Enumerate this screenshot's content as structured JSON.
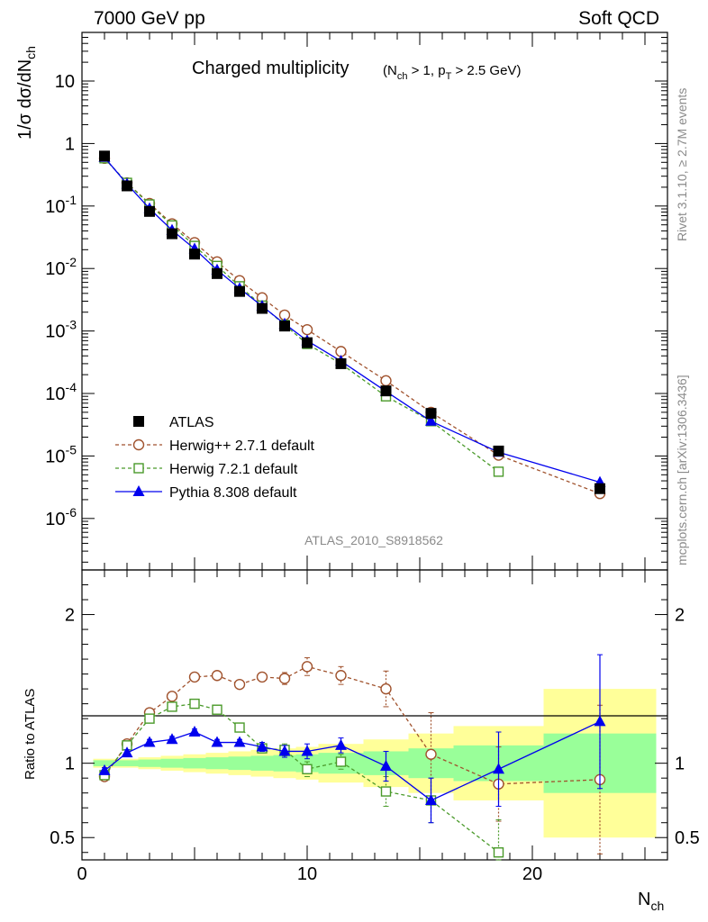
{
  "header": {
    "left": "7000 GeV pp",
    "right": "Soft QCD"
  },
  "side": {
    "top": "Rivet 3.1.10, ≥ 2.7M events",
    "bottom": "mcplots.cern.ch [arXiv:1306.3436]"
  },
  "colors": {
    "atlas": "#000000",
    "herwigpp": "#a0522d",
    "herwig7": "#4a9a2a",
    "pythia": "#0000ee",
    "band_inner": "#99ff99",
    "band_outer": "#ffff99"
  },
  "chart_data": [
    {
      "type": "scatter",
      "title": "Charged multiplicity",
      "title_sub": "(N_ch > 1, p_T > 2.5 GeV)",
      "ylabel": "1/σ dσ/dN_ch",
      "ylog": true,
      "ylim": [
        1.5e-07,
        60
      ],
      "xlim": [
        0,
        26
      ],
      "watermark": "ATLAS_2010_S8918562",
      "ytick_labels": [
        "10",
        "1",
        "10^-1",
        "10^-2",
        "10^-3",
        "10^-4",
        "10^-5",
        "10^-6"
      ],
      "series": [
        {
          "name": "ATLAS",
          "style": "square-filled",
          "x": [
            1,
            2,
            3,
            4,
            5,
            6,
            7,
            8,
            9,
            10,
            11.5,
            13.5,
            15.5,
            18.5,
            23
          ],
          "y": [
            0.63,
            0.21,
            0.082,
            0.036,
            0.017,
            0.0083,
            0.0043,
            0.0023,
            0.0012,
            0.00065,
            0.0003,
            0.00011,
            4.8e-05,
            1.2e-05,
            3e-06
          ]
        },
        {
          "name": "Herwig++ 2.7.1 default",
          "style": "circle-open-dashed",
          "x": [
            1,
            2,
            3,
            4,
            5,
            6,
            7,
            8,
            9,
            10,
            11.5,
            13.5,
            15.5,
            18.5,
            23
          ],
          "y": [
            0.58,
            0.235,
            0.11,
            0.052,
            0.026,
            0.0128,
            0.0064,
            0.0034,
            0.0018,
            0.00105,
            0.00047,
            0.00016,
            5e-05,
            1.03e-05,
            2.5e-06
          ]
        },
        {
          "name": "Herwig 7.2.1 default",
          "style": "square-open-dashed",
          "x": [
            1,
            2,
            3,
            4,
            5,
            6,
            7,
            8,
            9,
            10,
            11.5,
            13.5,
            15.5,
            18.5
          ],
          "y": [
            0.58,
            0.235,
            0.106,
            0.049,
            0.023,
            0.011,
            0.0052,
            0.00255,
            0.00125,
            0.00062,
            0.0003,
            9e-05,
            3.6e-05,
            5.6e-06
          ]
        },
        {
          "name": "Pythia 8.308 default",
          "style": "triangle-filled-solid",
          "x": [
            1,
            2,
            3,
            4,
            5,
            6,
            7,
            8,
            9,
            10,
            11.5,
            13.5,
            15.5,
            18.5,
            23
          ],
          "y": [
            0.6,
            0.225,
            0.091,
            0.041,
            0.0206,
            0.0095,
            0.0048,
            0.0025,
            0.0013,
            0.0007,
            0.00033,
            0.000108,
            3.6e-05,
            1.15e-05,
            3.8e-06
          ]
        }
      ]
    },
    {
      "type": "line",
      "ylabel": "Ratio to ATLAS",
      "xlabel": "N_ch",
      "xlim": [
        0,
        26
      ],
      "ylim": [
        0.35,
        2.3
      ],
      "x_ticks": [
        "0",
        "10",
        "20"
      ],
      "y_ticks": [
        "0.5",
        "1",
        "2"
      ],
      "bins": [
        {
          "lo": 0.5,
          "hi": 1.5,
          "inner": 0.02,
          "outer": 0.03
        },
        {
          "lo": 1.5,
          "hi": 2.5,
          "inner": 0.02,
          "outer": 0.03
        },
        {
          "lo": 2.5,
          "hi": 3.5,
          "inner": 0.025,
          "outer": 0.04
        },
        {
          "lo": 3.5,
          "hi": 4.5,
          "inner": 0.03,
          "outer": 0.05
        },
        {
          "lo": 4.5,
          "hi": 5.5,
          "inner": 0.035,
          "outer": 0.06
        },
        {
          "lo": 5.5,
          "hi": 6.5,
          "inner": 0.04,
          "outer": 0.07
        },
        {
          "lo": 6.5,
          "hi": 7.5,
          "inner": 0.045,
          "outer": 0.08
        },
        {
          "lo": 7.5,
          "hi": 8.5,
          "inner": 0.05,
          "outer": 0.09
        },
        {
          "lo": 8.5,
          "hi": 9.5,
          "inner": 0.055,
          "outer": 0.1
        },
        {
          "lo": 9.5,
          "hi": 10.5,
          "inner": 0.06,
          "outer": 0.11
        },
        {
          "lo": 10.5,
          "hi": 12.5,
          "inner": 0.07,
          "outer": 0.13
        },
        {
          "lo": 12.5,
          "hi": 14.5,
          "inner": 0.08,
          "outer": 0.16
        },
        {
          "lo": 14.5,
          "hi": 16.5,
          "inner": 0.1,
          "outer": 0.2
        },
        {
          "lo": 16.5,
          "hi": 20.5,
          "inner": 0.12,
          "outer": 0.25
        },
        {
          "lo": 20.5,
          "hi": 25.5,
          "inner": 0.2,
          "outer": 0.5
        }
      ],
      "series": [
        {
          "name": "Herwig++ 2.7.1 default",
          "x": [
            1,
            2,
            3,
            4,
            5,
            6,
            7,
            8,
            9,
            10,
            11.5,
            13.5,
            15.5,
            18.5,
            23
          ],
          "y": [
            0.91,
            1.13,
            1.34,
            1.45,
            1.58,
            1.59,
            1.53,
            1.58,
            1.57,
            1.65,
            1.59,
            1.5,
            1.06,
            0.86,
            0.89
          ],
          "err": [
            0.02,
            0.02,
            0.02,
            0.02,
            0.02,
            0.02,
            0.02,
            0.03,
            0.04,
            0.06,
            0.06,
            0.12,
            0.28,
            0.25,
            0.5
          ]
        },
        {
          "name": "Herwig 7.2.1 default",
          "x": [
            1,
            2,
            3,
            4,
            5,
            6,
            7,
            8,
            9,
            10,
            11.5,
            13.5,
            15.5,
            18.5
          ],
          "y": [
            0.92,
            1.12,
            1.3,
            1.38,
            1.4,
            1.36,
            1.24,
            1.1,
            1.09,
            0.96,
            1.01,
            0.81,
            0.75,
            0.4
          ],
          "err": [
            0.02,
            0.02,
            0.02,
            0.02,
            0.02,
            0.02,
            0.03,
            0.03,
            0.04,
            0.05,
            0.05,
            0.1,
            0.15,
            0.22
          ]
        },
        {
          "name": "Pythia 8.308 default",
          "x": [
            1,
            2,
            3,
            4,
            5,
            6,
            7,
            8,
            9,
            10,
            11.5,
            13.5,
            15.5,
            18.5,
            23
          ],
          "y": [
            0.95,
            1.07,
            1.14,
            1.16,
            1.21,
            1.14,
            1.14,
            1.11,
            1.08,
            1.08,
            1.12,
            0.98,
            0.75,
            0.96,
            1.28
          ],
          "err": [
            0.02,
            0.02,
            0.02,
            0.02,
            0.02,
            0.02,
            0.02,
            0.03,
            0.04,
            0.05,
            0.05,
            0.1,
            0.15,
            0.25,
            0.45
          ]
        }
      ]
    }
  ]
}
